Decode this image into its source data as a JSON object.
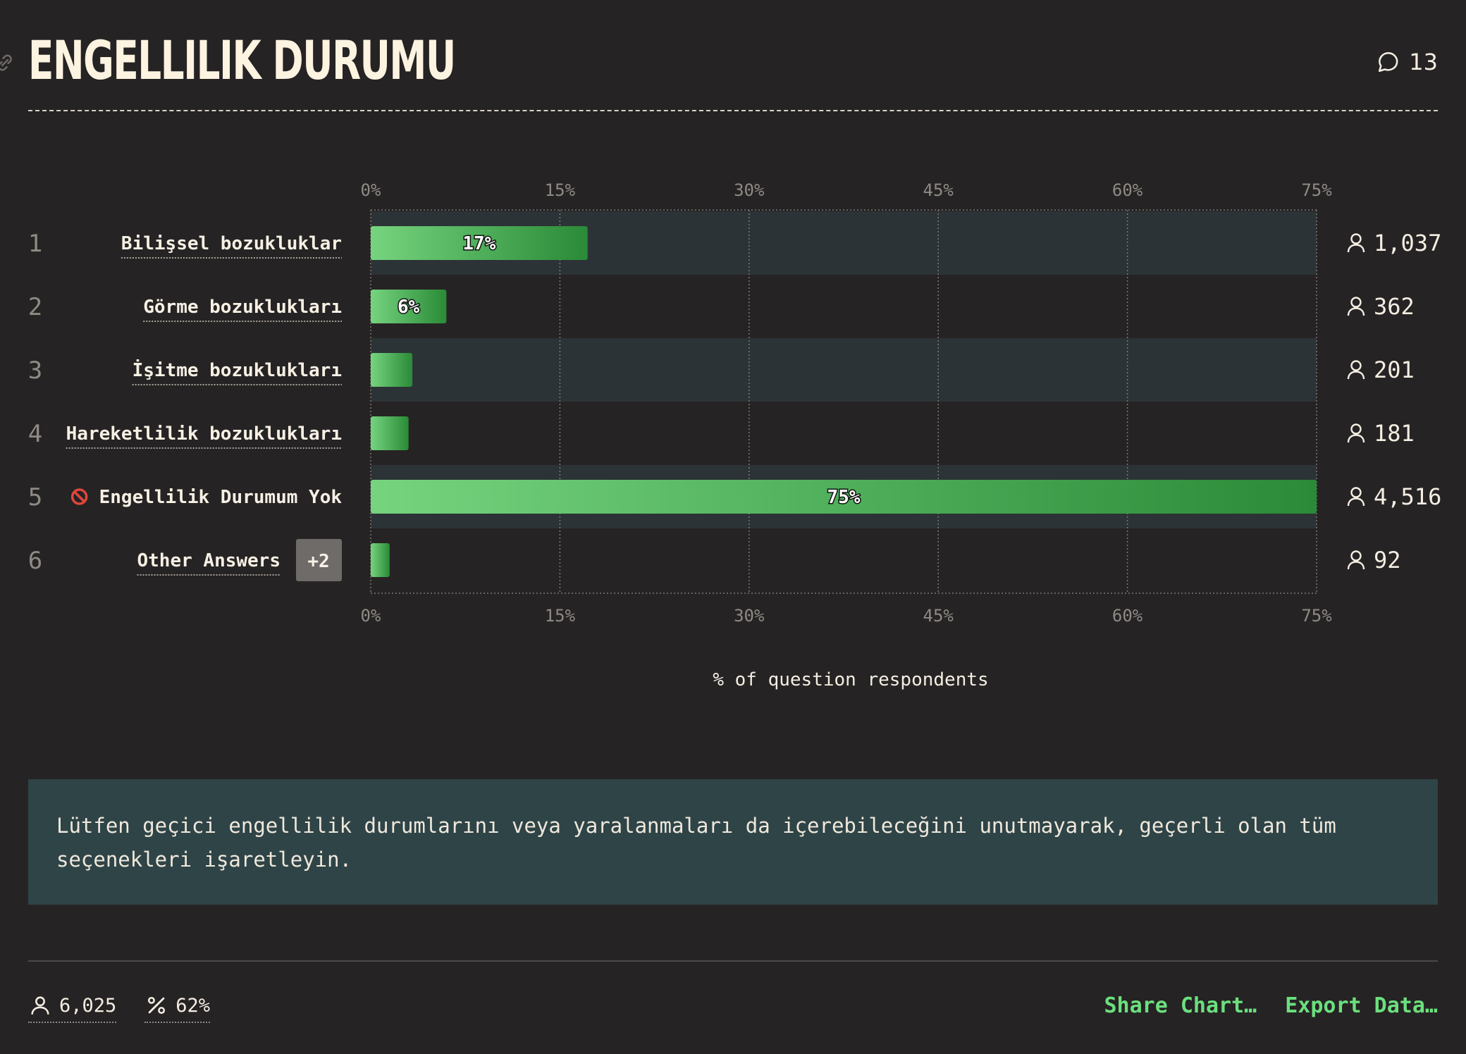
{
  "header": {
    "title": "ENGELLILIK DURUMU",
    "comment_count": "13"
  },
  "chart_data": {
    "type": "bar",
    "orientation": "horizontal",
    "xlabel": "% of question respondents",
    "xlim": [
      0,
      75
    ],
    "xticks": [
      "0%",
      "15%",
      "30%",
      "45%",
      "60%",
      "75%"
    ],
    "grid": true,
    "bars": [
      {
        "rank": "1",
        "label": "Bilişsel bozukluklar",
        "value": 17.2,
        "value_label": "17%",
        "count": "1,037"
      },
      {
        "rank": "2",
        "label": "Görme bozuklukları",
        "value": 6.0,
        "value_label": "6%",
        "count": "362"
      },
      {
        "rank": "3",
        "label": "İşitme bozuklukları",
        "value": 3.3,
        "value_label": "",
        "count": "201"
      },
      {
        "rank": "4",
        "label": "Hareketlilik bozuklukları",
        "value": 3.0,
        "value_label": "",
        "count": "181"
      },
      {
        "rank": "5",
        "label": "Engellilik Durumum Yok",
        "value": 75.0,
        "value_label": "75%",
        "count": "4,516",
        "icon": "no-entry-icon"
      },
      {
        "rank": "6",
        "label": "Other Answers",
        "value": 1.5,
        "value_label": "",
        "count": "92",
        "badge": "+2"
      }
    ],
    "colors": {
      "bar_start": "#76d47f",
      "bar_end": "#2a8a37",
      "row_band": "#2c3336"
    }
  },
  "description": "Lütfen geçici engellilik durumlarını veya yaralanmaları da içerebileceğini unutmayarak, geçerli olan tüm seçenekleri işaretleyin.",
  "footer": {
    "respondents": "6,025",
    "percent": "62%",
    "share_label": "Share Chart…",
    "export_label": "Export Data…"
  }
}
